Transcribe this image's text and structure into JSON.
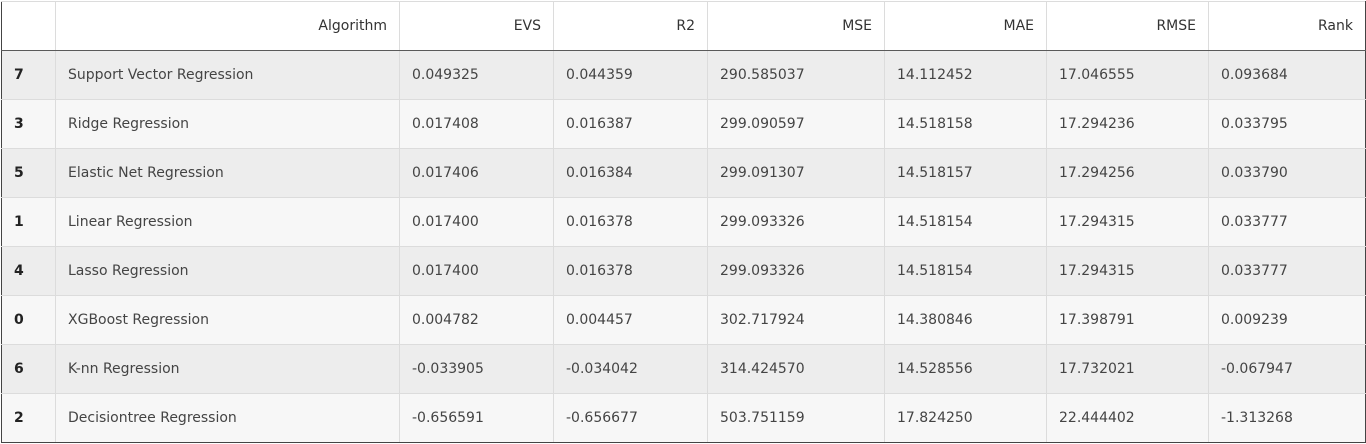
{
  "table": {
    "headers": {
      "index": "",
      "algorithm": "Algorithm",
      "evs": "EVS",
      "r2": "R2",
      "mse": "MSE",
      "mae": "MAE",
      "rmse": "RMSE",
      "rank": "Rank"
    },
    "rows": [
      {
        "index": "7",
        "algorithm": "Support Vector Regression",
        "evs": "0.049325",
        "r2": "0.044359",
        "mse": "290.585037",
        "mae": "14.112452",
        "rmse": "17.046555",
        "rank": "0.093684"
      },
      {
        "index": "3",
        "algorithm": "Ridge Regression",
        "evs": "0.017408",
        "r2": "0.016387",
        "mse": "299.090597",
        "mae": "14.518158",
        "rmse": "17.294236",
        "rank": "0.033795"
      },
      {
        "index": "5",
        "algorithm": "Elastic Net Regression",
        "evs": "0.017406",
        "r2": "0.016384",
        "mse": "299.091307",
        "mae": "14.518157",
        "rmse": "17.294256",
        "rank": "0.033790"
      },
      {
        "index": "1",
        "algorithm": "Linear Regression",
        "evs": "0.017400",
        "r2": "0.016378",
        "mse": "299.093326",
        "mae": "14.518154",
        "rmse": "17.294315",
        "rank": "0.033777"
      },
      {
        "index": "4",
        "algorithm": "Lasso Regression",
        "evs": "0.017400",
        "r2": "0.016378",
        "mse": "299.093326",
        "mae": "14.518154",
        "rmse": "17.294315",
        "rank": "0.033777"
      },
      {
        "index": "0",
        "algorithm": "XGBoost Regression",
        "evs": "0.004782",
        "r2": "0.004457",
        "mse": "302.717924",
        "mae": "14.380846",
        "rmse": "17.398791",
        "rank": "0.009239"
      },
      {
        "index": "6",
        "algorithm": "K-nn Regression",
        "evs": "-0.033905",
        "r2": "-0.034042",
        "mse": "314.424570",
        "mae": "14.528556",
        "rmse": "17.732021",
        "rank": "-0.067947"
      },
      {
        "index": "2",
        "algorithm": "Decisiontree Regression",
        "evs": "-0.656591",
        "r2": "-0.656677",
        "mse": "503.751159",
        "mae": "17.824250",
        "rmse": "22.444402",
        "rank": "-1.313268"
      }
    ]
  }
}
